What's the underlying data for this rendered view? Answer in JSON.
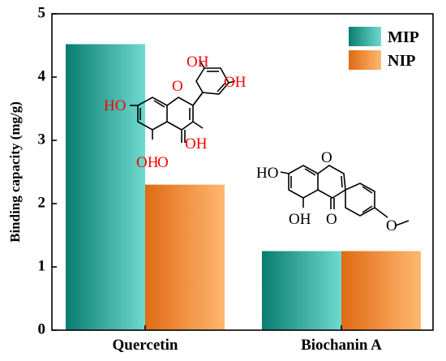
{
  "chart_data": {
    "type": "bar",
    "categories": [
      "Quercetin",
      "Biochanin A"
    ],
    "series": [
      {
        "name": "MIP",
        "values": [
          4.52,
          1.25
        ]
      },
      {
        "name": "NIP",
        "values": [
          2.3,
          1.25
        ]
      }
    ],
    "xlabel": "",
    "ylabel": "Binding capacity (mg/g)",
    "ylim": [
      0,
      5
    ],
    "yticks": [
      0,
      1,
      2,
      3,
      4,
      5
    ],
    "grid": false,
    "legend_position": "top-right"
  },
  "colors": {
    "mip_dark": "#0a7d70",
    "mip_light": "#6ed9cf",
    "nip_dark": "#e06a14",
    "nip_light": "#ffb870",
    "heteroatom": "#ff0000"
  },
  "structures": {
    "quercetin": {
      "labels": [
        "OH",
        "OH",
        "HO",
        "O",
        "OH",
        "OH",
        "O"
      ]
    },
    "biochanin_a": {
      "labels": [
        "HO",
        "O",
        "OH",
        "O",
        "O"
      ]
    }
  }
}
